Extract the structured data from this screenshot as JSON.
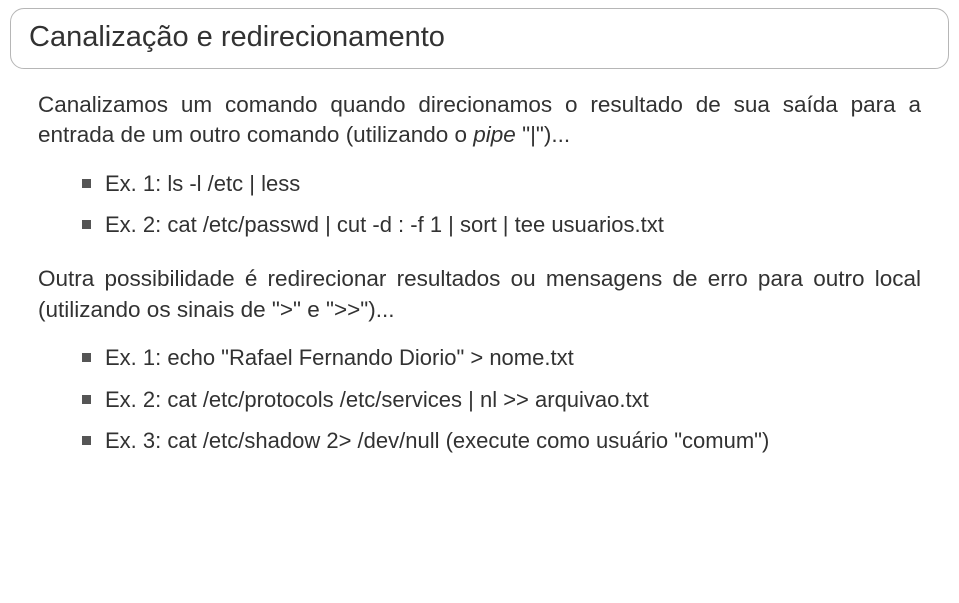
{
  "title": "Canalização e redirecionamento",
  "para1_a": "Canalizamos um comando quando direcionamos o resultado de sua saída para a entrada de um outro comando (utilizando o ",
  "para1_i": "pipe",
  "para1_b": " \"|\")...",
  "block1": {
    "b1": "Ex. 1: ls -l /etc | less",
    "b2": "Ex. 2: cat /etc/passwd | cut -d : -f 1 | sort | tee usuarios.txt"
  },
  "para2": "Outra possibilidade é redirecionar resultados ou mensagens de erro para outro local (utilizando os sinais de \">\" e \">>\")...",
  "block2": {
    "b1": "Ex. 1: echo \"Rafael Fernando Diorio\" > nome.txt",
    "b2": "Ex. 2: cat /etc/protocols /etc/services | nl >> arquivao.txt",
    "b3": "Ex. 3: cat /etc/shadow 2> /dev/null (execute como usuário \"comum\")"
  },
  "colors": {
    "border": "#b6b6b6",
    "text": "#323232",
    "bullet": "#555555",
    "background": "#ffffff"
  }
}
